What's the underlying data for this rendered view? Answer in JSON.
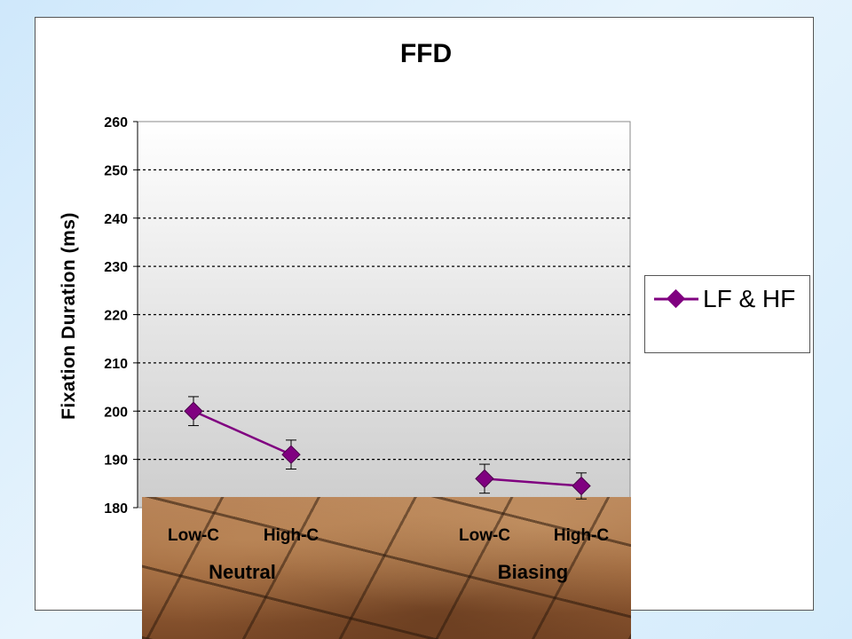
{
  "chart_data": {
    "type": "line",
    "title": "FFD",
    "ylabel": "Fixation Duration (ms)",
    "xlabel": "",
    "ylim": [
      180,
      260
    ],
    "yticks": [
      180,
      190,
      200,
      210,
      220,
      230,
      240,
      250,
      260
    ],
    "yticks_text": [
      "180",
      "190",
      "200",
      "210",
      "220",
      "230",
      "240",
      "250",
      "260"
    ],
    "categories": [
      "Low-C",
      "High-C",
      "Low-C",
      "High-C"
    ],
    "groups": [
      "Neutral",
      "Biasing"
    ],
    "grid": true,
    "legend_position": "right",
    "series": [
      {
        "name": "LF & HF",
        "color": "#800080",
        "segments": [
          [
            0,
            1
          ],
          [
            2,
            3
          ]
        ],
        "values": [
          200,
          191,
          186,
          184.5
        ],
        "error": [
          3,
          3,
          3,
          2.7
        ]
      }
    ]
  }
}
